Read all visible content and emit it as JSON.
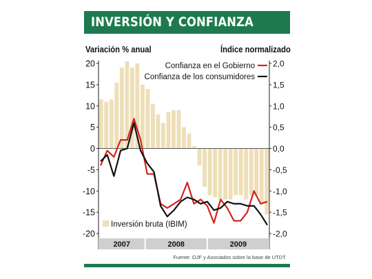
{
  "header": {
    "title": "INVERSIÓN Y CONFIANZA"
  },
  "source": "Fuente: OJF y  Asociados sobre la base de UTDT.",
  "colors": {
    "banner": "#1d7a4f",
    "bars": "#eedfb8",
    "government_line": "#d7201a",
    "consumer_line": "#111111"
  },
  "chart_data": {
    "type": "bar+line",
    "left_axis_label": "Variación % anual",
    "right_axis_label": "Índice normalizado",
    "left_ylim": [
      -20,
      20
    ],
    "left_ticks": [
      "20",
      "15",
      "10",
      "5",
      "0",
      "-5",
      "-10",
      "-15",
      "-20"
    ],
    "right_ylim": [
      -2.0,
      2.0
    ],
    "right_ticks": [
      "2,0",
      "1,5",
      "1,0",
      "0,5",
      "0,0",
      "-0,5",
      "-1,0",
      "-1,5",
      "-2,0"
    ],
    "year_labels": [
      "2007",
      "2008",
      "2009"
    ],
    "months_per_year": [
      9,
      12,
      12
    ],
    "legend_series": [
      "Confianza en el Gobierno",
      "Confianza de los consumidores"
    ],
    "bar_series": {
      "name": "Inversión bruta (IBIM)",
      "values": [
        11.5,
        11,
        11.5,
        15.5,
        19,
        20.5,
        19,
        20,
        15,
        14,
        10.5,
        8,
        6,
        8.5,
        9,
        9,
        5,
        3.5,
        0.5,
        -4,
        -9,
        -11,
        -11.5,
        -12,
        -12,
        -12,
        -11,
        -11,
        -12,
        -11,
        -11,
        -13,
        -15.5
      ]
    },
    "line_series": [
      {
        "name": "Confianza en el Gobierno",
        "values": [
          -0.4,
          -0.05,
          -0.2,
          0.2,
          0.2,
          0.7,
          0.2,
          -0.6,
          -0.6,
          -1.3,
          -1.4,
          -1.3,
          -1.2,
          -0.8,
          -1.3,
          -1.2,
          -1.35,
          -1.75,
          -1.2,
          -1.4,
          -1.7,
          -1.7,
          -1.5,
          -1.0,
          -1.3,
          -1.25
        ]
      },
      {
        "name": "Confianza de los consumidores",
        "values": [
          -0.3,
          -0.15,
          -0.65,
          -0.05,
          0.0,
          0.6,
          -0.05,
          -0.35,
          -0.55,
          -1.35,
          -1.6,
          -1.45,
          -1.25,
          -1.15,
          -1.2,
          -1.3,
          -1.25,
          -1.45,
          -1.4,
          -1.25,
          -1.3,
          -1.3,
          -1.35,
          -1.35,
          -1.55,
          -1.8
        ]
      }
    ]
  }
}
